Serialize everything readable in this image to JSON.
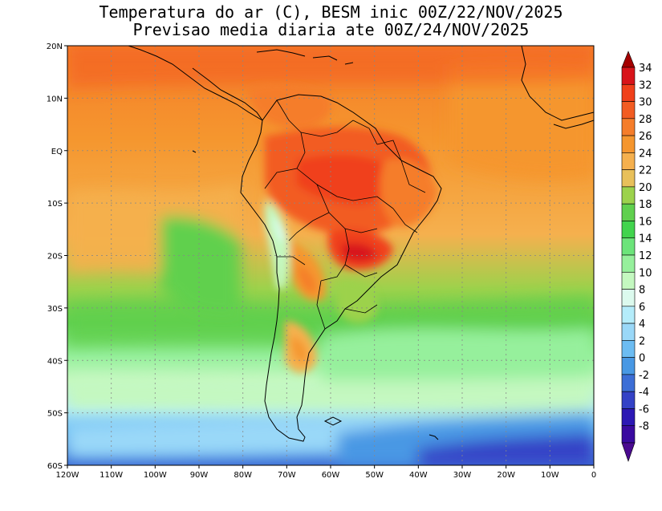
{
  "title_line1": "Temperatura do ar (C), BESM inic 00Z/22/NOV/2025",
  "title_line2": "Previsao media diaria ate 00Z/24/NOV/2025",
  "map": {
    "lon_range": [
      -120,
      0
    ],
    "lat_range": [
      -60,
      20
    ],
    "lat_labels": [
      "20N",
      "10N",
      "EQ",
      "10S",
      "20S",
      "30S",
      "40S",
      "50S",
      "60S"
    ],
    "lon_labels": [
      "120W",
      "110W",
      "100W",
      "90W",
      "80W",
      "70W",
      "60W",
      "50W",
      "40W",
      "30W",
      "20W",
      "10W",
      "0"
    ],
    "gridlines": true
  },
  "colorbar": {
    "unit": "C",
    "labels": [
      "34",
      "32",
      "30",
      "28",
      "26",
      "24",
      "22",
      "20",
      "18",
      "16",
      "14",
      "12",
      "10",
      "8",
      "6",
      "4",
      "2",
      "0",
      "-2",
      "-4",
      "-6",
      "-8"
    ],
    "colors": [
      "#a40000",
      "#d8141a",
      "#f0401a",
      "#f25c22",
      "#f57d2a",
      "#f5962e",
      "#f5b04e",
      "#e8c05a",
      "#9cd24c",
      "#60d04e",
      "#42d44e",
      "#6ce47a",
      "#96f09c",
      "#c4f8c0",
      "#dcfaee",
      "#b4ecfa",
      "#9ad8f8",
      "#6cbcf2",
      "#4898e4",
      "#3c6ed6",
      "#3442c6",
      "#2c18b4",
      "#3a0aa0",
      "#4a0a90"
    ]
  }
}
